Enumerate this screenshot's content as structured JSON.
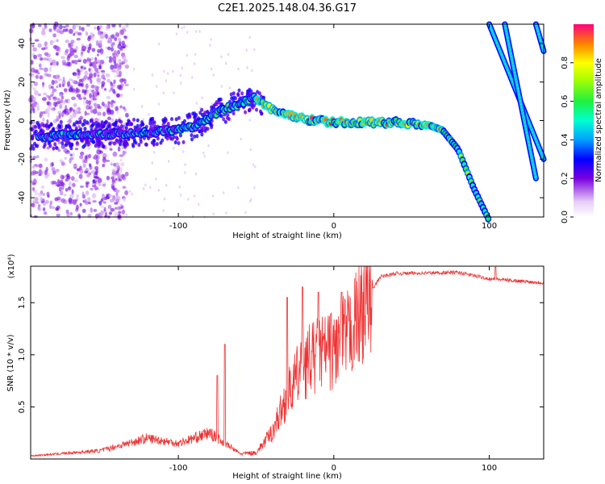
{
  "title": "C2E1.2025.148.04.36.G17",
  "chart_data": [
    {
      "type": "heatmap",
      "xlabel": "Height of straight line (km)",
      "ylabel": "Frequency (Hz)",
      "xlim": [
        -195,
        135
      ],
      "ylim": [
        -50,
        50
      ],
      "xticks": [
        -100,
        0,
        100
      ],
      "yticks": [
        -40,
        -20,
        0,
        20,
        40
      ],
      "colorbar": {
        "label": "Normalized spectral amplitude",
        "range": [
          0,
          1
        ],
        "ticks": [
          0.0,
          0.2,
          0.4,
          0.6,
          0.8
        ]
      },
      "ridge": [
        {
          "x": -180,
          "y": -8
        },
        {
          "x": -160,
          "y": -7
        },
        {
          "x": -140,
          "y": -7
        },
        {
          "x": -120,
          "y": -6
        },
        {
          "x": -100,
          "y": -5
        },
        {
          "x": -90,
          "y": -3
        },
        {
          "x": -80,
          "y": 2
        },
        {
          "x": -70,
          "y": 6
        },
        {
          "x": -60,
          "y": 9
        },
        {
          "x": -50,
          "y": 12
        },
        {
          "x": -45,
          "y": 8
        },
        {
          "x": -40,
          "y": 6
        },
        {
          "x": -30,
          "y": 3
        },
        {
          "x": -20,
          "y": 1
        },
        {
          "x": -10,
          "y": 0
        },
        {
          "x": 0,
          "y": -1
        },
        {
          "x": 20,
          "y": -1
        },
        {
          "x": 40,
          "y": -1
        },
        {
          "x": 60,
          "y": -2
        },
        {
          "x": 70,
          "y": -5
        },
        {
          "x": 80,
          "y": -15
        },
        {
          "x": 90,
          "y": -35
        },
        {
          "x": 100,
          "y": -52
        }
      ],
      "aliases": [
        {
          "points": [
            {
              "x": 100,
              "y": 50
            },
            {
              "x": 135,
              "y": -20
            }
          ]
        },
        {
          "points": [
            {
              "x": 110,
              "y": 50
            },
            {
              "x": 130,
              "y": -30
            }
          ]
        },
        {
          "points": [
            {
              "x": 130,
              "y": 50
            },
            {
              "x": 135,
              "y": 36
            }
          ]
        }
      ]
    },
    {
      "type": "line",
      "xlabel": "Height of straight line (km)",
      "ylabel": "SNR (10 * v/v)",
      "yscale_label": "(x10⁴)",
      "xlim": [
        -195,
        135
      ],
      "ylim": [
        0,
        18500
      ],
      "xticks": [
        -100,
        0,
        100
      ],
      "yticks": [
        5000,
        10000,
        15000
      ],
      "ytick_labels": [
        "0.5",
        "1.0",
        "1.5"
      ],
      "color": "#ee3333",
      "envelope": [
        {
          "x": -195,
          "y": 300
        },
        {
          "x": -150,
          "y": 800
        },
        {
          "x": -120,
          "y": 2000
        },
        {
          "x": -100,
          "y": 1500
        },
        {
          "x": -80,
          "y": 2500
        },
        {
          "x": -70,
          "y": 1500
        },
        {
          "x": -60,
          "y": 500
        },
        {
          "x": -50,
          "y": 600
        },
        {
          "x": -40,
          "y": 2500
        },
        {
          "x": -30,
          "y": 6000
        },
        {
          "x": -20,
          "y": 9000
        },
        {
          "x": -10,
          "y": 10000
        },
        {
          "x": 0,
          "y": 10500
        },
        {
          "x": 10,
          "y": 12000
        },
        {
          "x": 20,
          "y": 15000
        },
        {
          "x": 30,
          "y": 17500
        },
        {
          "x": 40,
          "y": 17800
        },
        {
          "x": 80,
          "y": 17900
        },
        {
          "x": 100,
          "y": 17300
        },
        {
          "x": 135,
          "y": 16900
        }
      ],
      "peaks": [
        {
          "x": -70,
          "y": 11000
        },
        {
          "x": -75,
          "y": 8000
        },
        {
          "x": -30,
          "y": 15500
        },
        {
          "x": -20,
          "y": 16500
        },
        {
          "x": -10,
          "y": 16000
        },
        {
          "x": 5,
          "y": 16000
        },
        {
          "x": 104,
          "y": 18400
        }
      ]
    }
  ]
}
